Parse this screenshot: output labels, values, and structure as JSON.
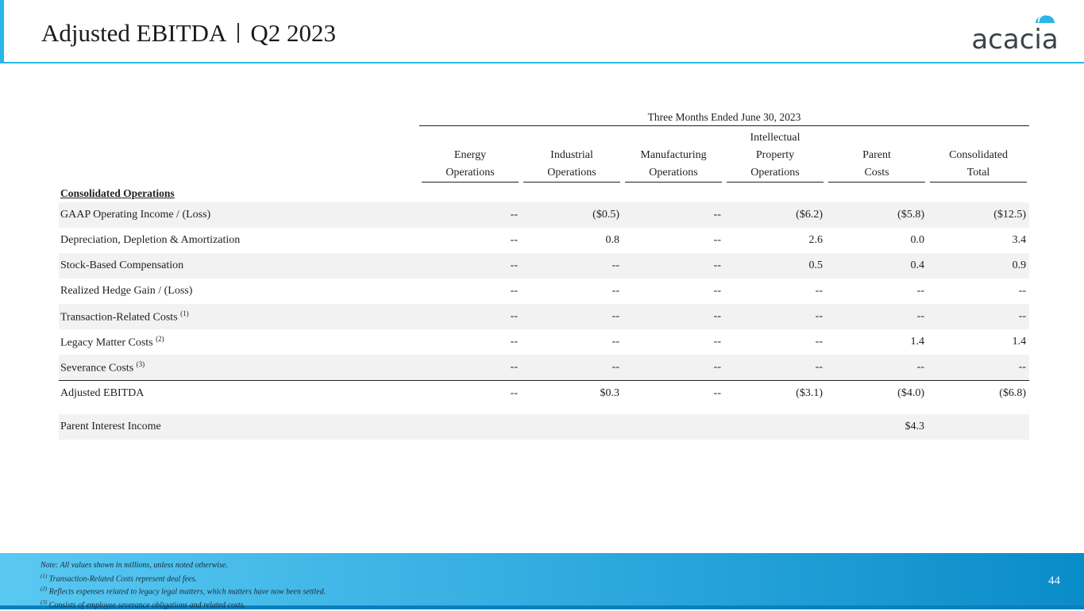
{
  "slide": {
    "title_left": "Adjusted EBITDA",
    "title_right": "Q2 2023",
    "logo_text": "acacia",
    "page_number": "44"
  },
  "table": {
    "period_header": "Three Months Ended June 30, 2023",
    "columns": [
      {
        "line1": "",
        "line2": "Energy",
        "line3": "Operations"
      },
      {
        "line1": "",
        "line2": "Industrial",
        "line3": "Operations"
      },
      {
        "line1": "",
        "line2": "Manufacturing",
        "line3": "Operations"
      },
      {
        "line1": "Intellectual",
        "line2": "Property",
        "line3": "Operations"
      },
      {
        "line1": "",
        "line2": "Parent",
        "line3": "Costs"
      },
      {
        "line1": "",
        "line2": "Consolidated",
        "line3": "Total"
      }
    ],
    "section_label": "Consolidated Operations",
    "rows": [
      {
        "label": "GAAP Operating Income / (Loss)",
        "sup": "",
        "values": [
          "--",
          "($0.5)",
          "--",
          "($6.2)",
          "($5.8)",
          "($12.5)"
        ]
      },
      {
        "label": "Depreciation, Depletion & Amortization",
        "sup": "",
        "values": [
          "--",
          "0.8",
          "--",
          "2.6",
          "0.0",
          "3.4"
        ]
      },
      {
        "label": "Stock-Based Compensation",
        "sup": "",
        "values": [
          "--",
          "--",
          "--",
          "0.5",
          "0.4",
          "0.9"
        ]
      },
      {
        "label": "Realized Hedge Gain / (Loss)",
        "sup": "",
        "values": [
          "--",
          "--",
          "--",
          "--",
          "--",
          "--"
        ]
      },
      {
        "label": "Transaction-Related Costs",
        "sup": "(1)",
        "values": [
          "--",
          "--",
          "--",
          "--",
          "--",
          "--"
        ]
      },
      {
        "label": "Legacy Matter Costs",
        "sup": "(2)",
        "values": [
          "--",
          "--",
          "--",
          "--",
          "1.4",
          "1.4"
        ]
      },
      {
        "label": "Severance Costs",
        "sup": "(3)",
        "values": [
          "--",
          "--",
          "--",
          "--",
          "--",
          "--"
        ]
      }
    ],
    "total_row": {
      "label": "Adjusted EBITDA",
      "values": [
        "--",
        "$0.3",
        "--",
        "($3.1)",
        "($4.0)",
        "($6.8)"
      ]
    },
    "interest_row": {
      "label": "Parent Interest Income",
      "values": [
        "",
        "",
        "",
        "",
        "$4.3",
        ""
      ]
    }
  },
  "notes": {
    "main": "Note: All values shown in millions, unless noted otherwise.",
    "n1_sup": "(1)",
    "n1": "Transaction-Related Costs represent deal fees.",
    "n2_sup": "(2)",
    "n2": "Reflects expenses related to legacy legal matters, which matters have now been settled.",
    "n3_sup": "(3)",
    "n3": "Consists of employee severance obligations and related costs."
  },
  "colors": {
    "accent": "#29b6e8",
    "logo_dark": "#3d4347",
    "logo_blue": "#29b6e8"
  }
}
